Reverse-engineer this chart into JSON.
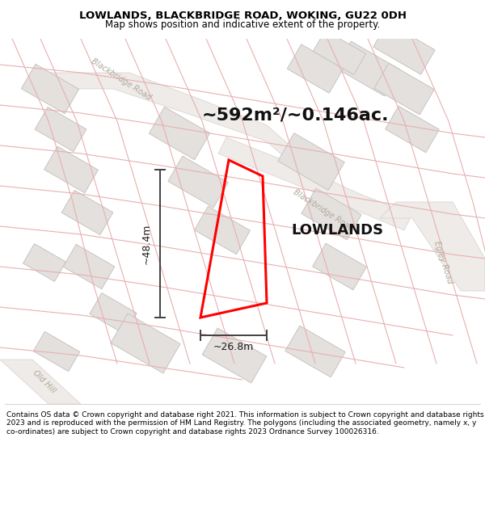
{
  "title_line1": "LOWLANDS, BLACKBRIDGE ROAD, WOKING, GU22 0DH",
  "title_line2": "Map shows position and indicative extent of the property.",
  "area_label": "~592m²/~0.146ac.",
  "property_name": "LOWLANDS",
  "dim_height": "~48.4m",
  "dim_width": "~26.8m",
  "footer": "Contains OS data © Crown copyright and database right 2021. This information is subject to Crown copyright and database rights 2023 and is reproduced with the permission of HM Land Registry. The polygons (including the associated geometry, namely x, y co-ordinates) are subject to Crown copyright and database rights 2023 Ordnance Survey 100026316.",
  "title_fontsize": 9.5,
  "subtitle_fontsize": 8.5,
  "area_fontsize": 16,
  "property_fontsize": 13,
  "road_label_fontsize": 7,
  "dim_fontsize": 9,
  "footer_fontsize": 6.5,
  "map_bg": "#f7f4f2",
  "block_fc": "#e3e0de",
  "block_ec": "#c8c4c0",
  "road_area_fc": "#eeebe8",
  "road_area_ec": "#d5d0cc",
  "cadastral_color": "#e8b0b0",
  "dim_color": "#404040",
  "road_label_color": "#b0a898",
  "prop_color": "red",
  "title_bg": "#ffffff",
  "footer_bg": "#ffffff",
  "sep_line_color": "#cccccc"
}
